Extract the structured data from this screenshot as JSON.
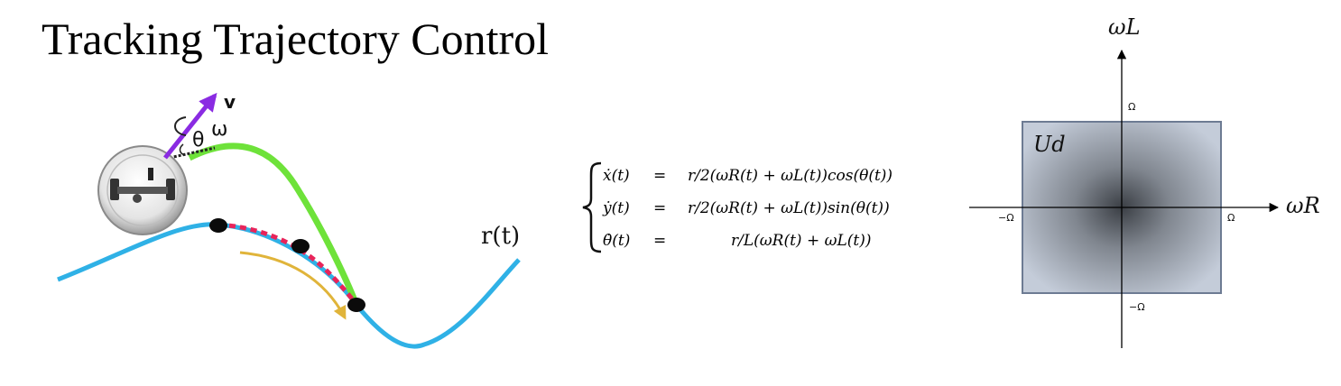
{
  "title": "Tracking Trajectory Control",
  "robot": {
    "velocity_label": "v",
    "angular_label": "ω",
    "angle_label": "θ"
  },
  "reference_label": "r(t)",
  "equations": [
    {
      "lhs": "ẋ(t)",
      "eq": "=",
      "rhs": "r/2(ωR(t) + ωL(t))cos(θ(t))"
    },
    {
      "lhs": "ẏ(t)",
      "eq": "=",
      "rhs": "r/2(ωR(t) + ωL(t))sin(θ(t))"
    },
    {
      "lhs": "θ̇(t)",
      "eq": "=",
      "rhs": "r/L(ωR(t) + ωL(t))"
    }
  ],
  "control_space": {
    "y_axis_label": "ωL",
    "x_axis_label": "ωR",
    "region_label": "Ud",
    "tick_pos_y": "Ω",
    "tick_neg_y": "−Ω",
    "tick_pos_x": "Ω",
    "tick_neg_x": "−Ω"
  },
  "colors": {
    "reference_path": "#2fb1e6",
    "robot_path": "#6ee23a",
    "tracking_dashes": "#e8245a",
    "arrow_gold": "#e0b43a",
    "velocity_arrow": "#8a2be2",
    "region_fill": "#a7b0c2",
    "region_border": "#6d7b93"
  }
}
